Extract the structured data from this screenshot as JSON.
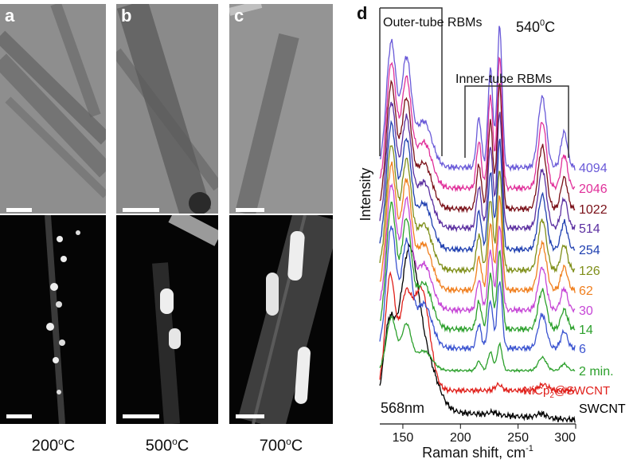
{
  "panels": [
    {
      "letter": "a",
      "temp_value": "200",
      "temp_sup": "o",
      "temp_unit": "C"
    },
    {
      "letter": "b",
      "temp_value": "500",
      "temp_sup": "o",
      "temp_unit": "C"
    },
    {
      "letter": "c",
      "temp_value": "700",
      "temp_sup": "o",
      "temp_unit": "C"
    }
  ],
  "chart_data": {
    "type": "line",
    "panel_letter": "d",
    "title_value": "540",
    "title_sup": "0",
    "title_unit": "C",
    "xlabel": "Raman shift, cm",
    "xlabel_sup": "-1",
    "ylabel": "Intensity",
    "xlim": [
      130,
      300
    ],
    "xticks": [
      150,
      200,
      250,
      300
    ],
    "annotations": {
      "outer": "Outer-tube RBMs",
      "inner": "Inner-tube RBMs",
      "wavelength": "568nm"
    },
    "peaks_cm1": [
      140,
      153,
      216,
      226,
      234,
      271,
      290
    ],
    "series": [
      {
        "name": "SWCNT",
        "color": "#000000"
      },
      {
        "name": "NiCp2@SWCNT",
        "color": "#e0201b"
      },
      {
        "name": "2 min.",
        "color": "#2ca02c"
      },
      {
        "name": "6",
        "color": "#3a53d0"
      },
      {
        "name": "14",
        "color": "#2ca02c"
      },
      {
        "name": "30",
        "color": "#c646d6"
      },
      {
        "name": "62",
        "color": "#f07f1e"
      },
      {
        "name": "126",
        "color": "#7f8f1a"
      },
      {
        "name": "254",
        "color": "#1f3fb0"
      },
      {
        "name": "514",
        "color": "#5b2fa0"
      },
      {
        "name": "1022",
        "color": "#7a1018"
      },
      {
        "name": "2046",
        "color": "#e0309a"
      },
      {
        "name": "4094",
        "color": "#6a5ad8"
      }
    ]
  }
}
